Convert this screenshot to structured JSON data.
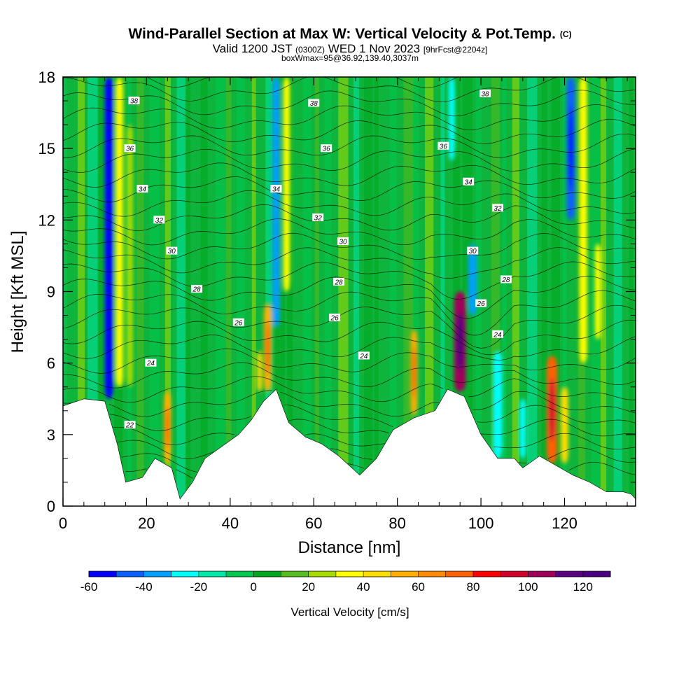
{
  "header": {
    "title": "Wind-Parallel Section at Max W: Vertical Velocity & Pot.Temp.",
    "copyright_mark": "(C)",
    "subtitle_valid": "Valid 1200 JST",
    "subtitle_utc": "(0300Z)",
    "subtitle_date": "WED 1 Nov 2023",
    "subtitle_fcst": "[9hrFcst@2204z]",
    "subtitle2": "boxWmax=95@36.92,139.40,3037m"
  },
  "chart_data": {
    "type": "heatmap",
    "xlabel": "Distance [nm]",
    "ylabel": "Height [Kft MSL]",
    "xlim": [
      0,
      137
    ],
    "ylim": [
      0,
      18
    ],
    "x_ticks": [
      0,
      20,
      40,
      60,
      80,
      100,
      120
    ],
    "y_ticks": [
      0,
      3,
      6,
      9,
      12,
      15,
      18
    ],
    "colorbar": {
      "label": "Vertical Velocity [cm/s]",
      "range": [
        -60,
        130
      ],
      "step": 10,
      "tick_values": [
        -60,
        -40,
        -20,
        0,
        20,
        40,
        60,
        80,
        100,
        120
      ],
      "colors": [
        "#0000ff",
        "#0a5fff",
        "#00a0ff",
        "#00ffff",
        "#00e8a8",
        "#00c850",
        "#00a81e",
        "#56be1e",
        "#a8dc00",
        "#ffff00",
        "#ffdc00",
        "#ffaf00",
        "#ff8c00",
        "#ff6000",
        "#ff0000",
        "#d2002a",
        "#a0005a",
        "#5a0082",
        "#4b0082"
      ]
    },
    "terrain": [
      {
        "x": 0,
        "h": 4.2
      },
      {
        "x": 5,
        "h": 4.5
      },
      {
        "x": 10,
        "h": 4.4
      },
      {
        "x": 13,
        "h": 2.6
      },
      {
        "x": 15,
        "h": 1.0
      },
      {
        "x": 19,
        "h": 1.2
      },
      {
        "x": 22,
        "h": 2.0
      },
      {
        "x": 26,
        "h": 1.6
      },
      {
        "x": 28,
        "h": 0.3
      },
      {
        "x": 31,
        "h": 1.0
      },
      {
        "x": 34,
        "h": 2.0
      },
      {
        "x": 38,
        "h": 2.5
      },
      {
        "x": 42,
        "h": 3.0
      },
      {
        "x": 45,
        "h": 3.6
      },
      {
        "x": 48,
        "h": 4.4
      },
      {
        "x": 51,
        "h": 4.9
      },
      {
        "x": 54,
        "h": 3.5
      },
      {
        "x": 58,
        "h": 2.9
      },
      {
        "x": 62,
        "h": 2.6
      },
      {
        "x": 66,
        "h": 2.1
      },
      {
        "x": 71,
        "h": 1.3
      },
      {
        "x": 75,
        "h": 2.0
      },
      {
        "x": 79,
        "h": 3.2
      },
      {
        "x": 84,
        "h": 3.7
      },
      {
        "x": 89,
        "h": 4.0
      },
      {
        "x": 92,
        "h": 4.9
      },
      {
        "x": 96,
        "h": 4.6
      },
      {
        "x": 100,
        "h": 3.0
      },
      {
        "x": 104,
        "h": 2.0
      },
      {
        "x": 108,
        "h": 2.0
      },
      {
        "x": 110,
        "h": 1.6
      },
      {
        "x": 114,
        "h": 2.1
      },
      {
        "x": 118,
        "h": 1.7
      },
      {
        "x": 122,
        "h": 1.3
      },
      {
        "x": 126,
        "h": 1.0
      },
      {
        "x": 130,
        "h": 0.6
      },
      {
        "x": 134,
        "h": 0.6
      },
      {
        "x": 136,
        "h": 0.5
      },
      {
        "x": 137,
        "h": 0.3
      }
    ],
    "velocity_columns": [
      {
        "x": 11,
        "w": 2.0,
        "ybot": 4.5,
        "ytop": 18,
        "value": -55
      },
      {
        "x": 13.5,
        "w": 1.8,
        "ybot": 5.0,
        "ytop": 18,
        "value": 35
      },
      {
        "x": 16,
        "w": 1.5,
        "ybot": 5.0,
        "ytop": 16,
        "value": 20
      },
      {
        "x": 25,
        "w": 1.6,
        "ybot": 1.8,
        "ytop": 4.8,
        "value": 50
      },
      {
        "x": 49,
        "w": 1.8,
        "ybot": 4.8,
        "ytop": 8.5,
        "value": 55
      },
      {
        "x": 47,
        "w": 1.2,
        "ybot": 4.8,
        "ytop": 6.5,
        "value": 40
      },
      {
        "x": 51,
        "w": 1.8,
        "ybot": 7.5,
        "ytop": 18,
        "value": -35
      },
      {
        "x": 53.5,
        "w": 1.6,
        "ybot": 9,
        "ytop": 18,
        "value": 30
      },
      {
        "x": 84,
        "w": 1.6,
        "ybot": 3.8,
        "ytop": 7.4,
        "value": 55
      },
      {
        "x": 95,
        "w": 2.8,
        "ybot": 4.8,
        "ytop": 9.0,
        "value": 100
      },
      {
        "x": 98,
        "w": 2.0,
        "ybot": 8.0,
        "ytop": 11.0,
        "value": -40
      },
      {
        "x": 93,
        "w": 1.5,
        "ybot": 14.5,
        "ytop": 18,
        "value": -30
      },
      {
        "x": 104,
        "w": 2.2,
        "ybot": 2.0,
        "ytop": 6.5,
        "value": -25
      },
      {
        "x": 110,
        "w": 1.5,
        "ybot": 2.0,
        "ytop": 4.5,
        "value": -30
      },
      {
        "x": 117,
        "w": 2.5,
        "ybot": 1.8,
        "ytop": 6.3,
        "value": 70
      },
      {
        "x": 120,
        "w": 1.8,
        "ybot": 1.8,
        "ytop": 5.0,
        "value": 40
      },
      {
        "x": 121.5,
        "w": 2.0,
        "ybot": 12,
        "ytop": 18,
        "value": -50
      },
      {
        "x": 124.5,
        "w": 1.8,
        "ybot": 6.0,
        "ytop": 18,
        "value": 35
      },
      {
        "x": 128,
        "w": 1.5,
        "ybot": 7.0,
        "ytop": 11,
        "value": 30
      }
    ],
    "theta_contour_labels": [
      {
        "text": "22",
        "x": 16,
        "y": 3.4
      },
      {
        "text": "24",
        "x": 21,
        "y": 6.0
      },
      {
        "text": "24",
        "x": 72,
        "y": 6.3
      },
      {
        "text": "24",
        "x": 104,
        "y": 7.2
      },
      {
        "text": "26",
        "x": 42,
        "y": 7.7
      },
      {
        "text": "26",
        "x": 65,
        "y": 7.9
      },
      {
        "text": "26",
        "x": 100,
        "y": 8.5
      },
      {
        "text": "28",
        "x": 32,
        "y": 9.1
      },
      {
        "text": "28",
        "x": 66,
        "y": 9.4
      },
      {
        "text": "28",
        "x": 106,
        "y": 9.5
      },
      {
        "text": "30",
        "x": 26,
        "y": 10.7
      },
      {
        "text": "30",
        "x": 67,
        "y": 11.1
      },
      {
        "text": "30",
        "x": 98,
        "y": 10.7
      },
      {
        "text": "32",
        "x": 23,
        "y": 12.0
      },
      {
        "text": "32",
        "x": 61,
        "y": 12.1
      },
      {
        "text": "32",
        "x": 104,
        "y": 12.5
      },
      {
        "text": "34",
        "x": 19,
        "y": 13.3
      },
      {
        "text": "34",
        "x": 51,
        "y": 13.3
      },
      {
        "text": "34",
        "x": 97,
        "y": 13.6
      },
      {
        "text": "36",
        "x": 16,
        "y": 15.0
      },
      {
        "text": "36",
        "x": 63,
        "y": 15.0
      },
      {
        "text": "36",
        "x": 91,
        "y": 15.1
      },
      {
        "text": "38",
        "x": 17,
        "y": 17.0
      },
      {
        "text": "38",
        "x": 60,
        "y": 16.9
      },
      {
        "text": "38",
        "x": 101,
        "y": 17.3
      }
    ]
  }
}
